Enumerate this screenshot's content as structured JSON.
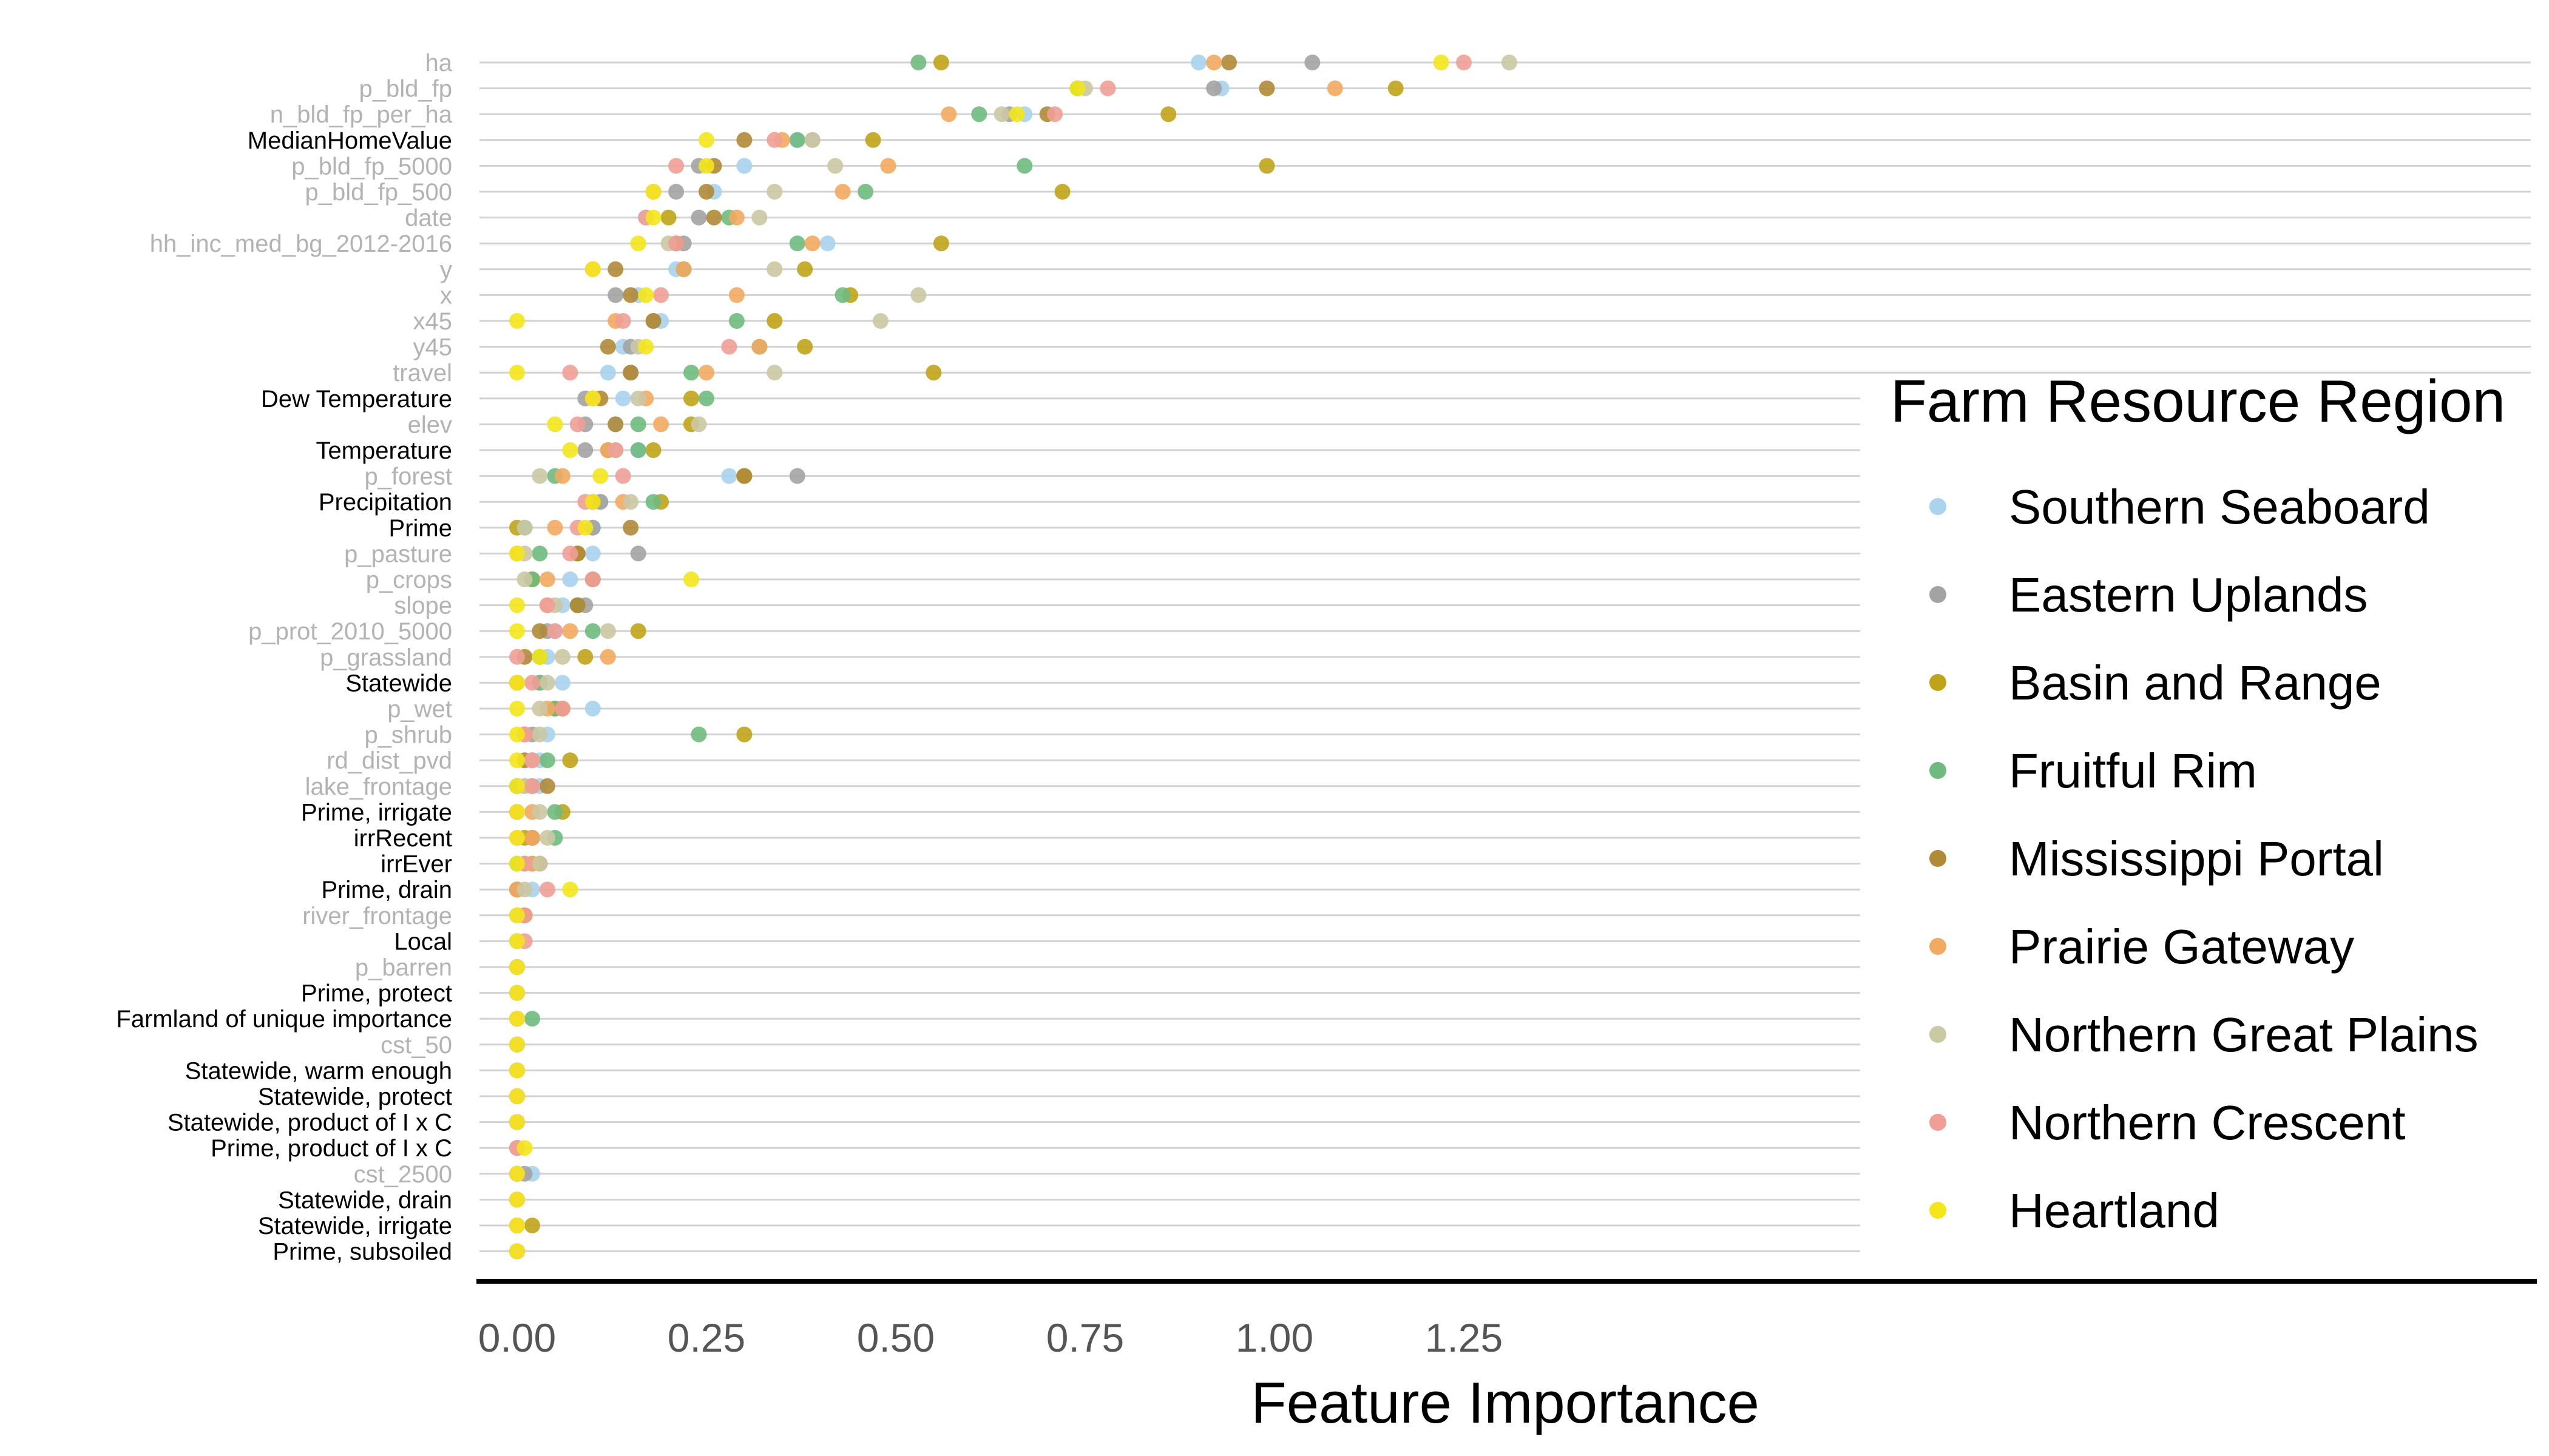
{
  "chart_data": {
    "type": "scatter",
    "xlabel": "Feature Importance",
    "xlim": [
      -0.06,
      1.35
    ],
    "xticks": [
      0.0,
      0.25,
      0.5,
      0.75,
      1.0,
      1.25
    ],
    "xtick_labels": [
      "0.00",
      "0.25",
      "0.50",
      "0.75",
      "1.00",
      "1.25"
    ],
    "grid": "horizontal",
    "legend": {
      "title": "Farm Resource Region",
      "position": "right"
    },
    "features": [
      {
        "name": "ha",
        "highlight": false
      },
      {
        "name": "p_bld_fp",
        "highlight": false
      },
      {
        "name": "n_bld_fp_per_ha",
        "highlight": false
      },
      {
        "name": "MedianHomeValue",
        "highlight": true
      },
      {
        "name": "p_bld_fp_5000",
        "highlight": false
      },
      {
        "name": "p_bld_fp_500",
        "highlight": false
      },
      {
        "name": "date",
        "highlight": false
      },
      {
        "name": "hh_inc_med_bg_2012-2016",
        "highlight": false
      },
      {
        "name": "y",
        "highlight": false
      },
      {
        "name": "x",
        "highlight": false
      },
      {
        "name": "x45",
        "highlight": false
      },
      {
        "name": "y45",
        "highlight": false
      },
      {
        "name": "travel",
        "highlight": false
      },
      {
        "name": "Dew Temperature",
        "highlight": true
      },
      {
        "name": "elev",
        "highlight": false
      },
      {
        "name": "Temperature",
        "highlight": true
      },
      {
        "name": "p_forest",
        "highlight": false
      },
      {
        "name": "Precipitation",
        "highlight": true
      },
      {
        "name": "Prime",
        "highlight": true
      },
      {
        "name": "p_pasture",
        "highlight": false
      },
      {
        "name": "p_crops",
        "highlight": false
      },
      {
        "name": "slope",
        "highlight": false
      },
      {
        "name": "p_prot_2010_5000",
        "highlight": false
      },
      {
        "name": "p_grassland",
        "highlight": false
      },
      {
        "name": "Statewide",
        "highlight": true
      },
      {
        "name": "p_wet",
        "highlight": false
      },
      {
        "name": "p_shrub",
        "highlight": false
      },
      {
        "name": "rd_dist_pvd",
        "highlight": false
      },
      {
        "name": "lake_frontage",
        "highlight": false
      },
      {
        "name": "Prime, irrigate",
        "highlight": true
      },
      {
        "name": "irrRecent",
        "highlight": true
      },
      {
        "name": "irrEver",
        "highlight": true
      },
      {
        "name": "Prime, drain",
        "highlight": true
      },
      {
        "name": "river_frontage",
        "highlight": false
      },
      {
        "name": "Local",
        "highlight": true
      },
      {
        "name": "p_barren",
        "highlight": false
      },
      {
        "name": "Prime, protect",
        "highlight": true
      },
      {
        "name": "Farmland of unique importance",
        "highlight": true
      },
      {
        "name": "cst_50",
        "highlight": false
      },
      {
        "name": "Statewide, warm enough",
        "highlight": true
      },
      {
        "name": "Statewide, protect",
        "highlight": true
      },
      {
        "name": "Statewide, product of I x C",
        "highlight": true
      },
      {
        "name": "Prime, product of I x C",
        "highlight": true
      },
      {
        "name": "cst_2500",
        "highlight": false
      },
      {
        "name": "Statewide, drain",
        "highlight": true
      },
      {
        "name": "Statewide, irrigate",
        "highlight": true
      },
      {
        "name": "Prime, subsoiled",
        "highlight": true
      }
    ],
    "series": [
      {
        "name": "Southern Seaboard",
        "color": "#a9d3ee",
        "values": [
          0.9,
          0.93,
          0.67,
          0.37,
          0.3,
          0.26,
          0.17,
          0.41,
          0.21,
          0.16,
          0.19,
          0.14,
          0.12,
          0.14,
          0.13,
          0.16,
          0.28,
          0.11,
          0.1,
          0.1,
          0.07,
          0.06,
          0.05,
          0.04,
          0.06,
          0.1,
          0.04,
          0.03,
          0.03,
          0.0,
          0.02,
          0.01,
          0.02,
          0.01,
          0.0,
          0.0,
          0.0,
          0.0,
          0.0,
          0.0,
          0.0,
          0.0,
          0.0,
          0.02,
          0.0,
          0.0,
          0.0
        ]
      },
      {
        "name": "Eastern Uplands",
        "color": "#a3a3a3",
        "values": [
          1.05,
          0.92,
          0.65,
          0.39,
          0.24,
          0.21,
          0.24,
          0.22,
          0.22,
          0.13,
          0.18,
          0.15,
          0.15,
          0.09,
          0.09,
          0.09,
          0.37,
          0.11,
          0.1,
          0.16,
          0.02,
          0.09,
          0.04,
          0.03,
          0.03,
          0.05,
          0.02,
          0.02,
          0.02,
          0.0,
          0.02,
          0.01,
          0.0,
          0.01,
          0.0,
          0.0,
          0.0,
          0.0,
          0.0,
          0.0,
          0.0,
          0.0,
          0.0,
          0.01,
          0.0,
          0.0,
          0.0
        ]
      },
      {
        "name": "Basin and Range",
        "color": "#c0a418",
        "values": [
          0.56,
          1.16,
          0.86,
          0.47,
          0.99,
          0.72,
          0.2,
          0.56,
          0.38,
          0.44,
          0.34,
          0.38,
          0.55,
          0.23,
          0.23,
          0.18,
          0.3,
          0.19,
          0.0,
          0.08,
          0.02,
          0.08,
          0.16,
          0.09,
          0.0,
          0.05,
          0.3,
          0.07,
          0.0,
          0.06,
          0.01,
          0.02,
          0.0,
          0.01,
          0.0,
          0.0,
          0.0,
          0.0,
          0.0,
          0.0,
          0.0,
          0.0,
          0.0,
          0.0,
          0.0,
          0.02,
          0.0
        ]
      },
      {
        "name": "Fruitful Rim",
        "color": "#6fba7e",
        "values": [
          0.53,
          0.74,
          0.61,
          0.37,
          0.67,
          0.46,
          0.28,
          0.37,
          0.22,
          0.43,
          0.29,
          0.32,
          0.23,
          0.25,
          0.16,
          0.16,
          0.05,
          0.18,
          0.01,
          0.03,
          0.02,
          0.08,
          0.1,
          0.03,
          0.03,
          0.05,
          0.24,
          0.04,
          0.0,
          0.05,
          0.05,
          0.0,
          0.0,
          0.0,
          0.0,
          0.0,
          0.0,
          0.02,
          0.0,
          0.0,
          0.0,
          0.0,
          0.0,
          0.0,
          0.0,
          0.0,
          0.0
        ]
      },
      {
        "name": "Mississippi Portal",
        "color": "#b08a36",
        "values": [
          0.94,
          0.99,
          0.7,
          0.3,
          0.26,
          0.25,
          0.26,
          0.21,
          0.13,
          0.15,
          0.18,
          0.12,
          0.15,
          0.11,
          0.13,
          0.12,
          0.3,
          0.1,
          0.15,
          0.08,
          0.1,
          0.08,
          0.03,
          0.01,
          0.0,
          0.06,
          0.01,
          0.01,
          0.04,
          0.0,
          0.02,
          0.03,
          0.0,
          0.0,
          0.0,
          0.0,
          0.0,
          0.0,
          0.0,
          0.0,
          0.0,
          0.0,
          0.0,
          0.0,
          0.0,
          0.0,
          0.0
        ]
      },
      {
        "name": "Prairie Gateway",
        "color": "#f2aa61",
        "values": [
          0.92,
          1.08,
          0.57,
          0.35,
          0.49,
          0.43,
          0.29,
          0.39,
          0.22,
          0.29,
          0.13,
          0.32,
          0.25,
          0.17,
          0.19,
          0.12,
          0.06,
          0.14,
          0.05,
          0.0,
          0.04,
          0.04,
          0.07,
          0.12,
          0.0,
          0.04,
          0.01,
          0.02,
          0.01,
          0.02,
          0.02,
          0.02,
          0.0,
          0.0,
          0.0,
          0.0,
          0.0,
          0.0,
          0.0,
          0.0,
          0.0,
          0.0,
          0.0,
          0.0,
          0.0,
          0.0,
          0.0
        ]
      },
      {
        "name": "Northern Great Plains",
        "color": "#cbc8a4",
        "values": [
          1.31,
          0.75,
          0.64,
          0.39,
          0.42,
          0.34,
          0.32,
          0.2,
          0.34,
          0.53,
          0.48,
          0.16,
          0.34,
          0.16,
          0.24,
          0.13,
          0.03,
          0.15,
          0.01,
          0.01,
          0.01,
          0.05,
          0.12,
          0.06,
          0.04,
          0.03,
          0.03,
          0.02,
          0.01,
          0.03,
          0.04,
          0.03,
          0.01,
          0.0,
          0.0,
          0.0,
          0.0,
          0.0,
          0.0,
          0.0,
          0.0,
          0.0,
          0.0,
          0.0,
          0.0,
          0.0,
          0.0
        ]
      },
      {
        "name": "Northern Crescent",
        "color": "#f09e96",
        "values": [
          1.25,
          0.78,
          0.71,
          0.34,
          0.21,
          0.18,
          0.17,
          0.21,
          0.1,
          0.19,
          0.14,
          0.28,
          0.07,
          0.1,
          0.08,
          0.13,
          0.14,
          0.09,
          0.08,
          0.07,
          0.1,
          0.04,
          0.05,
          0.0,
          0.02,
          0.06,
          0.01,
          0.02,
          0.02,
          0.0,
          0.0,
          0.01,
          0.04,
          0.01,
          0.01,
          0.0,
          0.0,
          0.0,
          0.0,
          0.0,
          0.0,
          0.0,
          0.0,
          0.0,
          0.0,
          0.0,
          0.0
        ]
      },
      {
        "name": "Heartland",
        "color": "#f4e61a",
        "values": [
          1.22,
          0.74,
          0.66,
          0.25,
          0.25,
          0.18,
          0.18,
          0.16,
          0.1,
          0.17,
          0.0,
          0.17,
          0.0,
          0.1,
          0.05,
          0.07,
          0.11,
          0.1,
          0.09,
          0.0,
          0.23,
          0.0,
          0.0,
          0.03,
          0.0,
          0.0,
          0.0,
          0.0,
          0.0,
          0.0,
          0.0,
          0.0,
          0.07,
          0.0,
          0.0,
          0.0,
          0.0,
          0.0,
          0.0,
          0.0,
          0.0,
          0.0,
          0.01,
          0.0,
          0.0,
          0.0,
          0.0
        ]
      }
    ]
  }
}
